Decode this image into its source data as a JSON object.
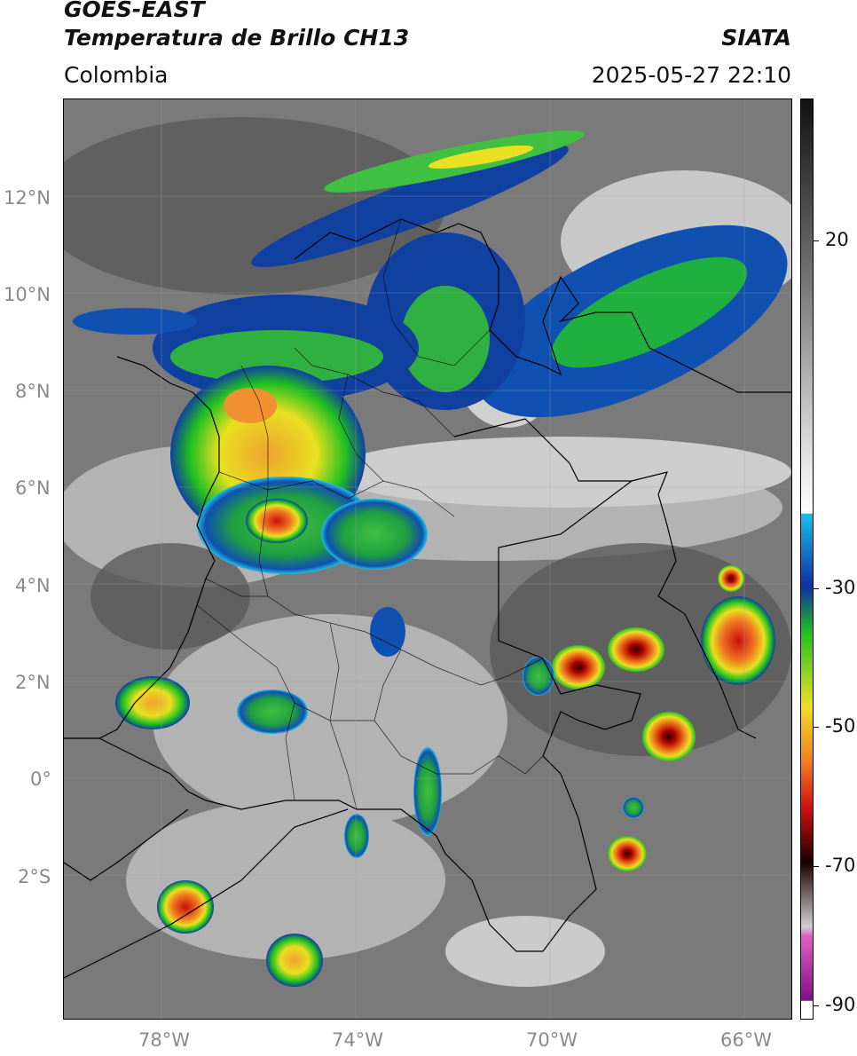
{
  "header": {
    "satellite": "GOES-EAST",
    "product": "Temperatura de Brillo CH13",
    "region": "Colombia",
    "organization": "SIATA",
    "datetime": "2025-05-27 22:10"
  },
  "map": {
    "lat_range": [
      -5,
      14
    ],
    "lon_range": [
      -80,
      -65
    ],
    "lat_ticks": [
      "12°N",
      "10°N",
      "8°N",
      "6°N",
      "4°N",
      "2°N",
      "0°",
      "2°S"
    ],
    "lon_ticks": [
      "78°W",
      "74°W",
      "70°W",
      "66°W"
    ]
  },
  "colorbar": {
    "units_ticks": [
      "20",
      "-30",
      "-50",
      "-70",
      "-90"
    ],
    "colors": {
      "warm_top": "#111111",
      "gray_mid": "#888888",
      "white": "#f4f4f4",
      "cyan": "#18c0e8",
      "blue": "#1030a0",
      "green": "#20c020",
      "yellow": "#f0e020",
      "orange": "#f08020",
      "red": "#d01010",
      "dark": "#1a0000",
      "magenta": "#e060c0",
      "purple": "#80108a"
    }
  }
}
